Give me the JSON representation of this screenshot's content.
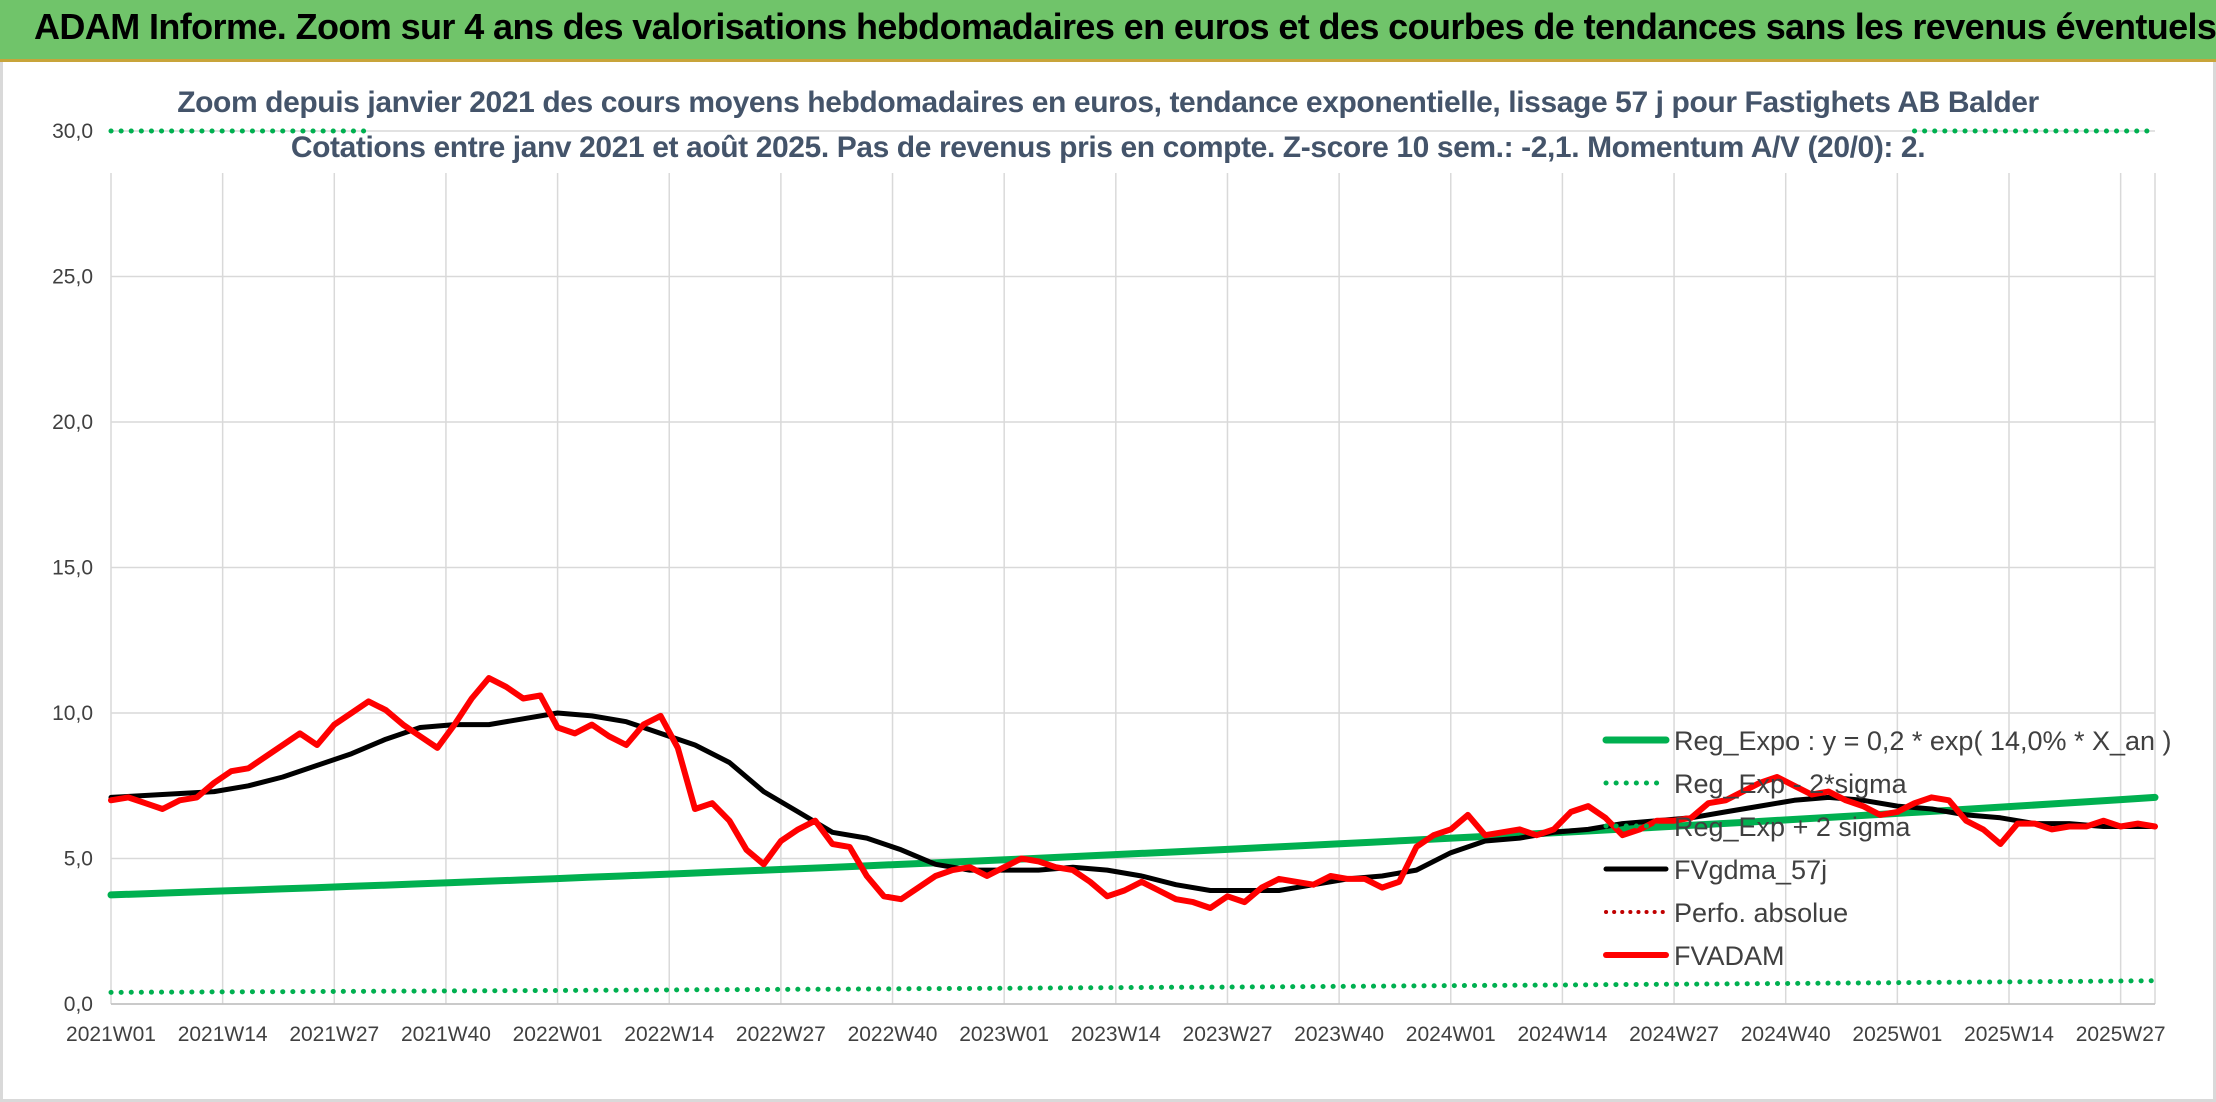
{
  "banner": {
    "title": "ADAM Informe. Zoom sur 4 ans des valorisations hebdomadaires en euros et des courbes de tendances sans les revenus éventuels"
  },
  "colors": {
    "banner": "#70c46a",
    "reg_expo": "#00b050",
    "fvgdma": "#000000",
    "fvadam": "#ff0000",
    "perfo": "#c00000",
    "subtitle": "#44546a"
  },
  "chart_data": {
    "type": "line",
    "title": "Zoom depuis janvier 2021 des cours moyens hebdomadaires en euros, tendance exponentielle, lissage 57 j pour Fastighets AB Balder",
    "subtitle": "Cotations entre janv 2021 et août 2025. Pas de revenus pris en compte. Z-score 10 sem.: -2,1. Momentum A/V (20/0): 2.",
    "ylim": [
      0,
      30
    ],
    "y_ticks": [
      "0,0",
      "5,0",
      "10,0",
      "15,0",
      "20,0",
      "25,0",
      "30,0"
    ],
    "x_ticks": [
      "2021W01",
      "2021W14",
      "2021W27",
      "2021W40",
      "2022W01",
      "2022W14",
      "2022W27",
      "2022W40",
      "2023W01",
      "2023W14",
      "2023W27",
      "2023W40",
      "2024W01",
      "2024W14",
      "2024W27",
      "2024W40",
      "2025W01",
      "2025W14",
      "2025W27"
    ],
    "grid": true,
    "legend_position": "right",
    "series": [
      {
        "name": "Reg_Expo : y = 0,2 * exp( 14,0% *  X_an )",
        "style": "solid-thick",
        "x": [
          0,
          238
        ],
        "values": [
          3.75,
          7.1
        ]
      },
      {
        "name": "Reg_Exp - 2*sigma",
        "style": "dotted",
        "x": [
          0,
          238
        ],
        "values": [
          0.4,
          0.8
        ]
      },
      {
        "name": "Reg_Exp + 2 sigma",
        "style": "dotted",
        "x": [
          0,
          238
        ],
        "values": [
          30.0,
          30.0
        ]
      },
      {
        "name": "FVgdma_57j",
        "style": "solid",
        "x": [
          0,
          6,
          12,
          16,
          20,
          24,
          28,
          32,
          36,
          40,
          44,
          48,
          52,
          56,
          60,
          64,
          68,
          72,
          76,
          80,
          84,
          88,
          92,
          96,
          100,
          104,
          108,
          112,
          116,
          120,
          124,
          128,
          132,
          136,
          140,
          144,
          148,
          152,
          156,
          160,
          164,
          168,
          172,
          176,
          180,
          184,
          188,
          192,
          196,
          200,
          204,
          208,
          212,
          216,
          220,
          224,
          228,
          232,
          238
        ],
        "values": [
          7.1,
          7.2,
          7.3,
          7.5,
          7.8,
          8.2,
          8.6,
          9.1,
          9.5,
          9.6,
          9.6,
          9.8,
          10.0,
          9.9,
          9.7,
          9.3,
          8.9,
          8.3,
          7.3,
          6.6,
          5.9,
          5.7,
          5.3,
          4.8,
          4.6,
          4.6,
          4.6,
          4.7,
          4.6,
          4.4,
          4.1,
          3.9,
          3.9,
          3.9,
          4.1,
          4.3,
          4.4,
          4.6,
          5.2,
          5.6,
          5.7,
          5.9,
          6.0,
          6.2,
          6.3,
          6.4,
          6.6,
          6.8,
          7.0,
          7.1,
          7.0,
          6.8,
          6.7,
          6.5,
          6.4,
          6.2,
          6.2,
          6.1,
          6.1
        ]
      },
      {
        "name": "Perfo. absolue",
        "style": "dotted-red",
        "x": [],
        "values": []
      },
      {
        "name": "FVADAM",
        "style": "solid-thick",
        "x": [
          0,
          2,
          4,
          6,
          8,
          10,
          12,
          14,
          16,
          18,
          20,
          22,
          24,
          26,
          28,
          30,
          32,
          34,
          36,
          38,
          40,
          42,
          44,
          46,
          48,
          50,
          52,
          54,
          56,
          58,
          60,
          62,
          64,
          66,
          68,
          70,
          72,
          74,
          76,
          78,
          80,
          82,
          84,
          86,
          88,
          90,
          92,
          94,
          96,
          98,
          100,
          102,
          104,
          106,
          108,
          110,
          112,
          114,
          116,
          118,
          120,
          122,
          124,
          126,
          128,
          130,
          132,
          134,
          136,
          138,
          140,
          142,
          144,
          146,
          148,
          150,
          152,
          154,
          156,
          158,
          160,
          162,
          164,
          166,
          168,
          170,
          172,
          174,
          176,
          178,
          180,
          182,
          184,
          186,
          188,
          190,
          192,
          194,
          196,
          198,
          200,
          202,
          204,
          206,
          208,
          210,
          212,
          214,
          216,
          218,
          220,
          222,
          224,
          226,
          228,
          230,
          232,
          234,
          236,
          238
        ],
        "values": [
          7.0,
          7.1,
          6.9,
          6.7,
          7.0,
          7.1,
          7.6,
          8.0,
          8.1,
          8.5,
          8.9,
          9.3,
          8.9,
          9.6,
          10.0,
          10.4,
          10.1,
          9.6,
          9.2,
          8.8,
          9.6,
          10.5,
          11.2,
          10.9,
          10.5,
          10.6,
          9.5,
          9.3,
          9.6,
          9.2,
          8.9,
          9.6,
          9.9,
          8.8,
          6.7,
          6.9,
          6.3,
          5.3,
          4.8,
          5.6,
          6.0,
          6.3,
          5.5,
          5.4,
          4.4,
          3.7,
          3.6,
          4.0,
          4.4,
          4.6,
          4.7,
          4.4,
          4.7,
          5.0,
          4.9,
          4.7,
          4.6,
          4.2,
          3.7,
          3.9,
          4.2,
          3.9,
          3.6,
          3.5,
          3.3,
          3.7,
          3.5,
          4.0,
          4.3,
          4.2,
          4.1,
          4.4,
          4.3,
          4.3,
          4.0,
          4.2,
          5.4,
          5.8,
          6.0,
          6.5,
          5.8,
          5.9,
          6.0,
          5.8,
          6.0,
          6.6,
          6.8,
          6.4,
          5.8,
          6.0,
          6.3,
          6.3,
          6.4,
          6.9,
          7.0,
          7.3,
          7.6,
          7.8,
          7.5,
          7.2,
          7.3,
          7.0,
          6.8,
          6.5,
          6.6,
          6.9,
          7.1,
          7.0,
          6.3,
          6.0,
          5.5,
          6.2,
          6.2,
          6.0,
          6.1,
          6.1,
          6.3,
          6.1,
          6.2,
          6.1
        ]
      }
    ]
  }
}
